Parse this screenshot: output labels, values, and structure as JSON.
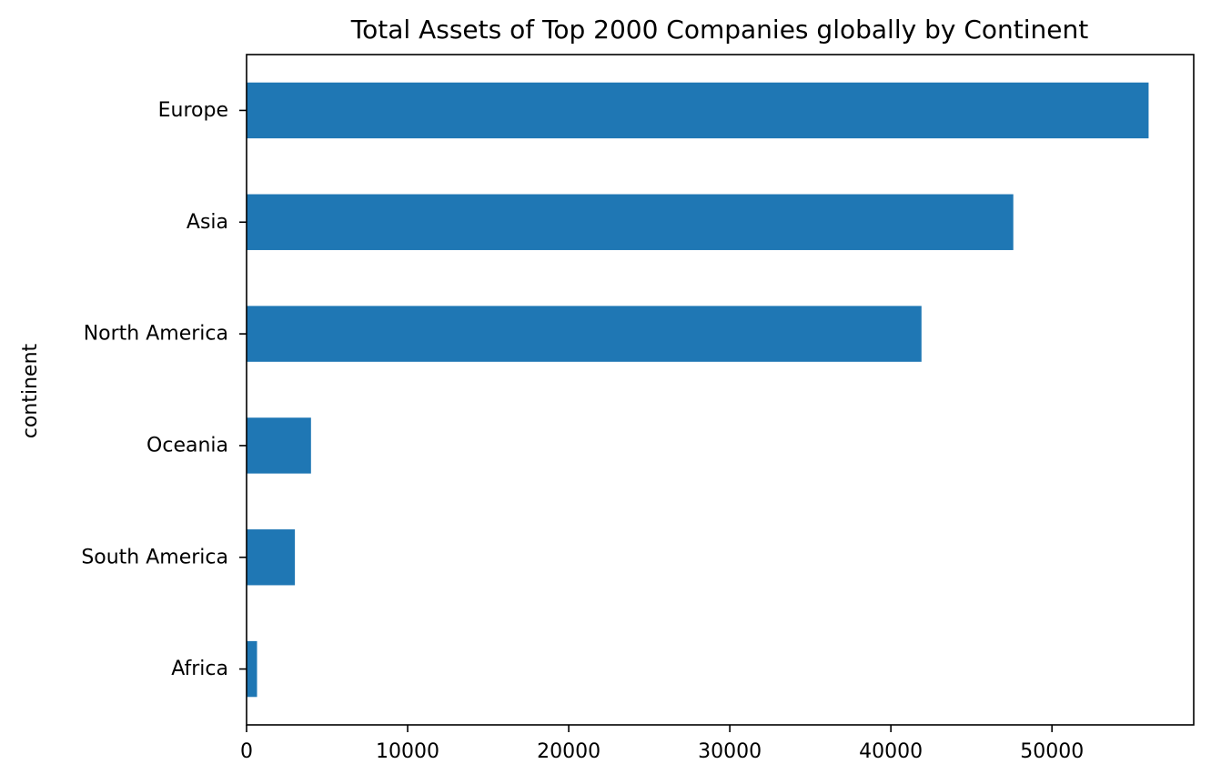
{
  "chart_data": {
    "type": "bar",
    "orientation": "horizontal",
    "title": "Total Assets of Top 2000 Companies globally by Continent",
    "xlabel": "",
    "ylabel": "continent",
    "categories": [
      "Africa",
      "South America",
      "Oceania",
      "North America",
      "Asia",
      "Europe"
    ],
    "values": [
      650,
      3000,
      4000,
      41900,
      47600,
      56000
    ],
    "xlim": [
      0,
      58800
    ],
    "xticks": [
      0,
      10000,
      20000,
      30000,
      40000,
      50000
    ],
    "xtick_labels": [
      "0",
      "10000",
      "20000",
      "30000",
      "40000",
      "50000"
    ],
    "bar_color": "#1f77b4",
    "grid": false,
    "legend": "none"
  }
}
